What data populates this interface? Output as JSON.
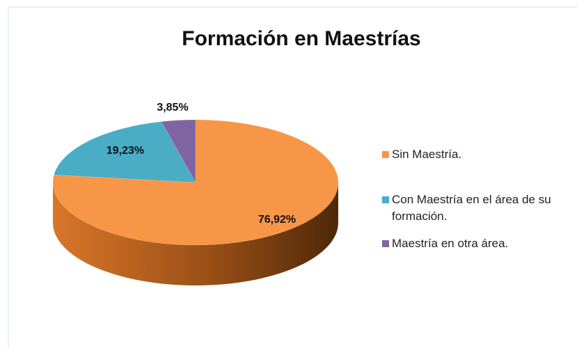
{
  "chart_data": {
    "type": "pie",
    "title": "Formación en Maestrías",
    "categories": [
      "Sin Maestría.",
      "Con Maestría en el área de su formación.",
      "Maestría en otra área."
    ],
    "values": [
      76.92,
      19.23,
      3.85
    ],
    "value_labels": [
      "76,92%",
      "19,23%",
      "3,85%"
    ],
    "colors": [
      "#f79646",
      "#4bacc6",
      "#8064a2"
    ],
    "legend": "right"
  }
}
